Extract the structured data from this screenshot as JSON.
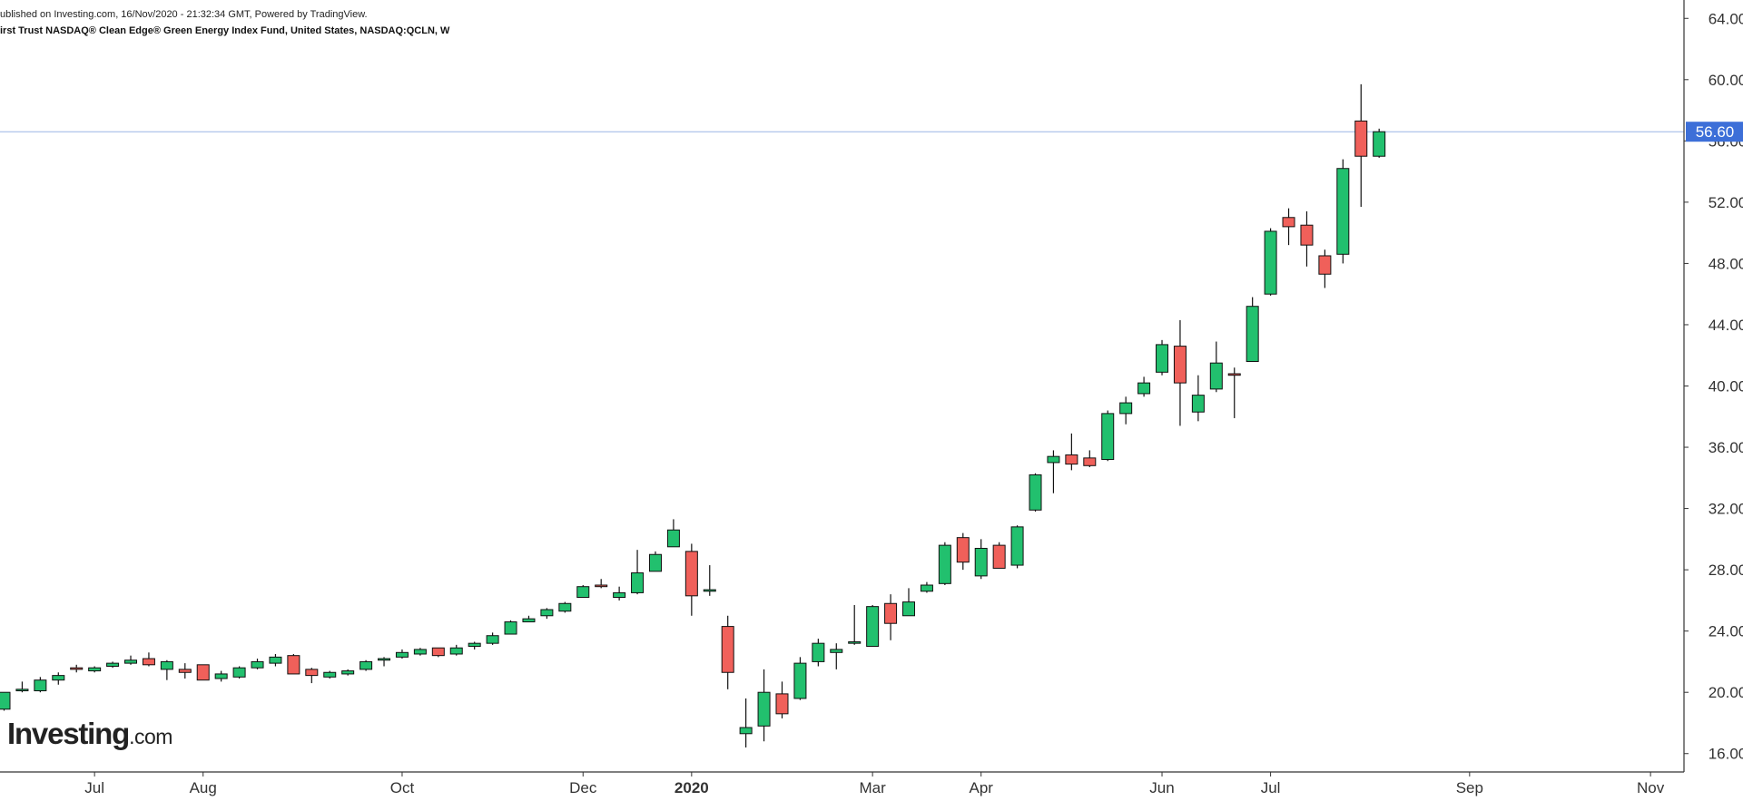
{
  "header": {
    "published": "ublished on Investing.com, 16/Nov/2020 - 21:32:34 GMT, Powered by TradingView.",
    "symbol": "irst Trust NASDAQ® Clean Edge® Green Energy Index Fund, United States, NASDAQ:QCLN, W"
  },
  "logo": {
    "brand": "Investing",
    "suffix": ".com"
  },
  "colors": {
    "up": "#22c06e",
    "down": "#f0605a",
    "outline": "#111111",
    "price_line": "#9bb5e6",
    "price_badge": "#3d6fd8",
    "axis": "#333333"
  },
  "chart_data": {
    "type": "candlestick",
    "interval": "W",
    "y_axis": {
      "position": "right",
      "range": [
        14.8,
        65.2
      ],
      "ticks": [
        16,
        20,
        24,
        28,
        32,
        36,
        40,
        44,
        48,
        52,
        56,
        60,
        64
      ],
      "tick_labels": [
        "16.00",
        "20.00",
        "24.00",
        "28.00",
        "32.00",
        "36.00",
        "40.00",
        "44.00",
        "48.00",
        "52.00",
        "56.00",
        "60.00",
        "64.00"
      ]
    },
    "x_axis": {
      "labels": [
        {
          "label": "Jul",
          "index": 5,
          "bold": false
        },
        {
          "label": "Aug",
          "index": 11,
          "bold": false
        },
        {
          "label": "Oct",
          "index": 22,
          "bold": false
        },
        {
          "label": "Dec",
          "index": 32,
          "bold": false
        },
        {
          "label": "2020",
          "index": 38,
          "bold": true
        },
        {
          "label": "Mar",
          "index": 48,
          "bold": false
        },
        {
          "label": "Apr",
          "index": 54,
          "bold": false
        },
        {
          "label": "Jun",
          "index": 64,
          "bold": false
        },
        {
          "label": "Jul",
          "index": 70,
          "bold": false
        },
        {
          "label": "Sep",
          "index": 81,
          "bold": false
        },
        {
          "label": "Nov",
          "index": 91,
          "bold": false
        }
      ]
    },
    "last_price": 56.6,
    "last_price_label": "56.60",
    "candles": [
      [
        18.9,
        20.0,
        18.8,
        20.0
      ],
      [
        20.1,
        20.7,
        20.0,
        20.2
      ],
      [
        20.1,
        21.0,
        20.0,
        20.8
      ],
      [
        20.8,
        21.3,
        20.5,
        21.1
      ],
      [
        21.6,
        21.8,
        21.3,
        21.5
      ],
      [
        21.4,
        21.7,
        21.3,
        21.6
      ],
      [
        21.7,
        22.0,
        21.6,
        21.9
      ],
      [
        21.9,
        22.4,
        21.8,
        22.1
      ],
      [
        22.2,
        22.6,
        21.7,
        21.8
      ],
      [
        21.5,
        22.1,
        20.8,
        22.0
      ],
      [
        21.5,
        21.9,
        20.9,
        21.3
      ],
      [
        21.8,
        21.8,
        20.8,
        20.8
      ],
      [
        20.9,
        21.4,
        20.7,
        21.2
      ],
      [
        21.0,
        21.7,
        20.9,
        21.6
      ],
      [
        21.6,
        22.2,
        21.5,
        22.0
      ],
      [
        21.9,
        22.5,
        21.7,
        22.3
      ],
      [
        22.4,
        22.5,
        21.2,
        21.2
      ],
      [
        21.5,
        21.6,
        20.6,
        21.1
      ],
      [
        21.0,
        21.4,
        20.9,
        21.3
      ],
      [
        21.2,
        21.5,
        21.1,
        21.4
      ],
      [
        21.5,
        22.1,
        21.4,
        22.0
      ],
      [
        22.1,
        22.3,
        21.7,
        22.2
      ],
      [
        22.3,
        22.8,
        22.2,
        22.6
      ],
      [
        22.5,
        22.9,
        22.4,
        22.8
      ],
      [
        22.9,
        22.9,
        22.3,
        22.4
      ],
      [
        22.5,
        23.1,
        22.4,
        22.9
      ],
      [
        23.0,
        23.3,
        22.8,
        23.2
      ],
      [
        23.2,
        23.9,
        23.1,
        23.7
      ],
      [
        23.8,
        24.7,
        23.8,
        24.6
      ],
      [
        24.6,
        25.0,
        24.6,
        24.8
      ],
      [
        25.0,
        25.5,
        24.8,
        25.4
      ],
      [
        25.3,
        25.9,
        25.2,
        25.8
      ],
      [
        26.2,
        27.0,
        26.2,
        26.9
      ],
      [
        27.0,
        27.4,
        26.8,
        26.9
      ],
      [
        26.2,
        26.9,
        26.0,
        26.5
      ],
      [
        26.5,
        29.3,
        26.4,
        27.8
      ],
      [
        27.9,
        29.2,
        27.9,
        29.0
      ],
      [
        29.5,
        31.3,
        29.5,
        30.6
      ],
      [
        29.2,
        29.7,
        25.0,
        26.3
      ],
      [
        26.6,
        28.3,
        26.3,
        26.7
      ],
      [
        24.3,
        25.0,
        20.2,
        21.3
      ],
      [
        17.3,
        19.6,
        16.4,
        17.7
      ],
      [
        17.8,
        21.5,
        16.8,
        20.0
      ],
      [
        19.9,
        20.7,
        18.3,
        18.6
      ],
      [
        19.6,
        22.3,
        19.5,
        21.9
      ],
      [
        22.0,
        23.5,
        21.7,
        23.2
      ],
      [
        22.6,
        23.2,
        21.5,
        22.8
      ],
      [
        23.2,
        25.7,
        23.1,
        23.3
      ],
      [
        23.0,
        25.7,
        23.0,
        25.6
      ],
      [
        25.8,
        26.4,
        23.4,
        24.5
      ],
      [
        25.0,
        26.8,
        25.0,
        25.9
      ],
      [
        26.6,
        27.2,
        26.5,
        27.0
      ],
      [
        27.1,
        29.8,
        27.0,
        29.6
      ],
      [
        30.1,
        30.4,
        28.0,
        28.5
      ],
      [
        27.6,
        30.0,
        27.4,
        29.4
      ],
      [
        29.6,
        29.8,
        28.1,
        28.1
      ],
      [
        28.3,
        30.9,
        28.1,
        30.8
      ],
      [
        31.9,
        34.3,
        31.8,
        34.2
      ],
      [
        35.0,
        35.8,
        33.0,
        35.4
      ],
      [
        35.5,
        36.9,
        34.5,
        34.9
      ],
      [
        35.3,
        35.8,
        34.7,
        34.8
      ],
      [
        35.2,
        38.4,
        35.1,
        38.2
      ],
      [
        38.2,
        39.3,
        37.5,
        38.9
      ],
      [
        39.5,
        40.6,
        39.3,
        40.2
      ],
      [
        40.9,
        43.0,
        40.7,
        42.7
      ],
      [
        42.6,
        44.3,
        37.4,
        40.2
      ],
      [
        38.3,
        40.7,
        37.7,
        39.4
      ],
      [
        39.8,
        42.9,
        39.6,
        41.5
      ],
      [
        40.8,
        41.2,
        37.9,
        40.7
      ],
      [
        41.6,
        45.8,
        41.6,
        45.2
      ],
      [
        46.0,
        50.3,
        45.9,
        50.1
      ],
      [
        51.0,
        51.6,
        49.2,
        50.4
      ],
      [
        50.5,
        51.4,
        47.8,
        49.2
      ],
      [
        48.5,
        48.9,
        46.4,
        47.3
      ],
      [
        48.6,
        54.8,
        48.0,
        54.2
      ],
      [
        57.3,
        59.7,
        51.7,
        55.0
      ],
      [
        55.0,
        56.8,
        54.9,
        56.6
      ]
    ]
  }
}
